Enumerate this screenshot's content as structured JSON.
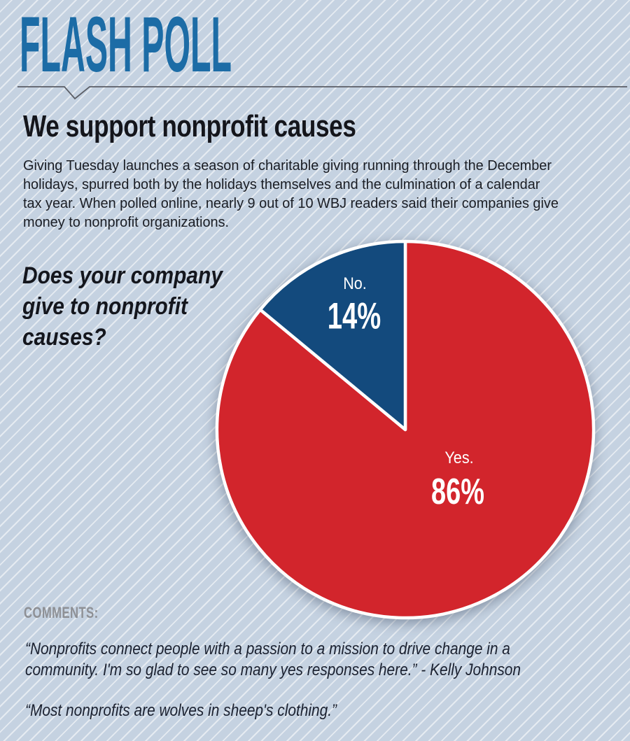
{
  "masthead": {
    "title": "FLASH POLL"
  },
  "headline": "We support nonprofit causes",
  "intro": {
    "lines": [
      "Giving Tuesday launches a season of charitable giving running through the December",
      "holidays, spurred both by the holidays themselves and the culmination of a calendar",
      "tax year. When polled online, nearly 9 out of 10 WBJ readers said their companies give",
      "money to nonprofit organizations."
    ]
  },
  "question": {
    "lines": [
      "Does your company",
      "give to nonprofit",
      "causes?"
    ]
  },
  "chart_data": {
    "type": "pie",
    "title": "Does your company give to nonprofit causes?",
    "start_angle_deg": 0,
    "direction": "clockwise",
    "legend_position": "none",
    "slices": [
      {
        "label": "Yes.",
        "value": 86,
        "value_label": "86%",
        "color": "#d2252c"
      },
      {
        "label": "No.",
        "value": 14,
        "value_label": "14%",
        "color": "#134a7d"
      }
    ]
  },
  "comments": {
    "heading": "COMMENTS:",
    "quote1_lines": [
      "“Nonprofits connect people with a passion to a mission to drive change in a",
      "community. I'm so glad to see so many yes responses here.” - Kelly Johnson"
    ],
    "quote2_lines": [
      "“Most nonprofits are wolves in sheep's clothing.”"
    ]
  },
  "palette": {
    "background": "#c5d2e1",
    "stripe": "#e3ebf3",
    "masthead_blue": "#1c6ca6",
    "divider_gray": "#5b5e66",
    "headline_black": "#14151b",
    "body_text": "#1a1d24",
    "comments_gray": "#8e9095",
    "pie_yes_red": "#d2252c",
    "pie_no_blue": "#134a7d",
    "pie_rim_white": "#ffffff"
  }
}
